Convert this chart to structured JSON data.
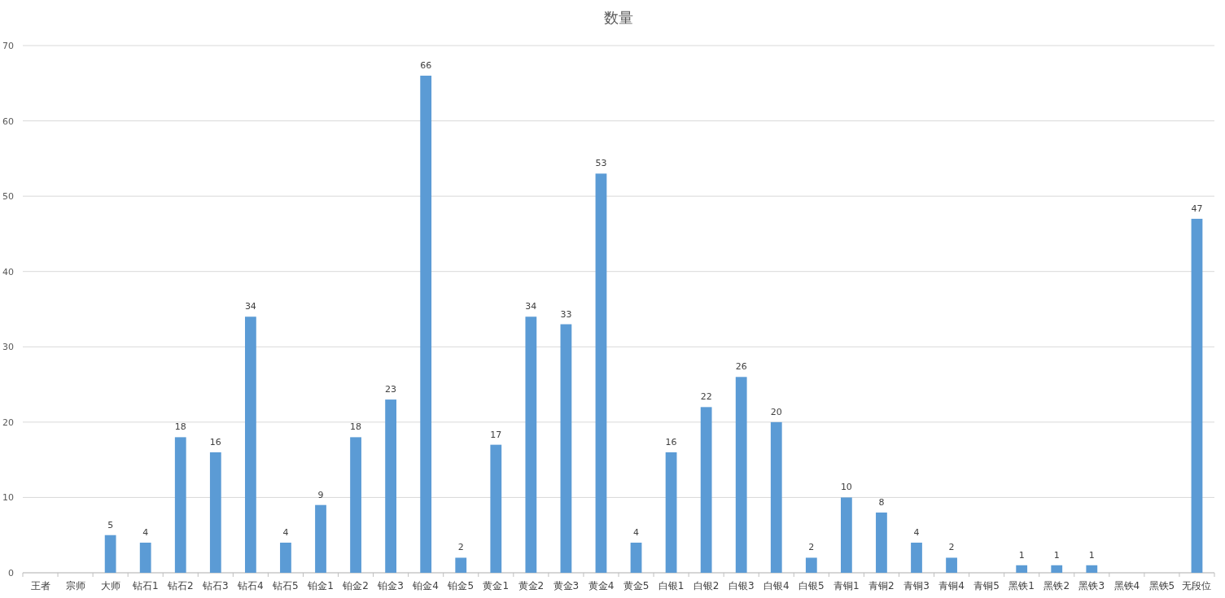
{
  "chart_data": {
    "type": "bar",
    "title": "数量",
    "categories": [
      "王者",
      "宗师",
      "大师",
      "钻石1",
      "钻石2",
      "钻石3",
      "钻石4",
      "钻石5",
      "铂金1",
      "铂金2",
      "铂金3",
      "铂金4",
      "铂金5",
      "黄金1",
      "黄金2",
      "黄金3",
      "黄金4",
      "黄金5",
      "白银1",
      "白银2",
      "白银3",
      "白银4",
      "白银5",
      "青铜1",
      "青铜2",
      "青铜3",
      "青铜4",
      "青铜5",
      "黑铁1",
      "黑铁2",
      "黑铁3",
      "黑铁4",
      "黑铁5",
      "无段位"
    ],
    "values": [
      null,
      null,
      5,
      4,
      18,
      16,
      34,
      4,
      9,
      18,
      23,
      66,
      2,
      17,
      34,
      33,
      53,
      4,
      16,
      22,
      26,
      20,
      2,
      10,
      8,
      4,
      2,
      null,
      1,
      1,
      1,
      null,
      null,
      47
    ],
    "color": "#5b9bd5",
    "ylim": [
      0,
      70
    ],
    "yticks": [
      0,
      10,
      20,
      30,
      40,
      50,
      60,
      70
    ],
    "grid": "y",
    "data_labels": true
  }
}
